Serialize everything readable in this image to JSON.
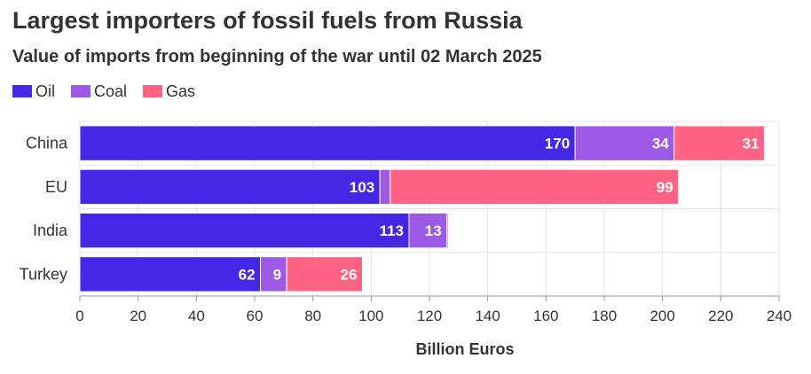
{
  "chart_data": {
    "type": "bar",
    "orientation": "horizontal",
    "stacked": true,
    "title": "Largest importers of fossil fuels from Russia",
    "subtitle": "Value of imports from beginning of the war until 02 March 2025",
    "xlabel": "Billion Euros",
    "ylabel": "",
    "xlim": [
      0,
      240
    ],
    "xticks": [
      0,
      20,
      40,
      60,
      80,
      100,
      120,
      140,
      160,
      180,
      200,
      220,
      240
    ],
    "grid": true,
    "legend_position": "top-left",
    "categories": [
      "China",
      "EU",
      "India",
      "Turkey"
    ],
    "series": [
      {
        "name": "Oil",
        "color": "#4527e6",
        "values": [
          170,
          103,
          113,
          62
        ],
        "labels": [
          "170",
          "103",
          "113",
          "62"
        ]
      },
      {
        "name": "Coal",
        "color": "#9b59e6",
        "values": [
          34,
          3.5,
          13,
          9
        ],
        "labels": [
          "34",
          "",
          "13",
          "9"
        ]
      },
      {
        "name": "Gas",
        "color": "#ff6384",
        "values": [
          31,
          99,
          0.5,
          26
        ],
        "labels": [
          "31",
          "99",
          "",
          "26"
        ]
      }
    ]
  }
}
